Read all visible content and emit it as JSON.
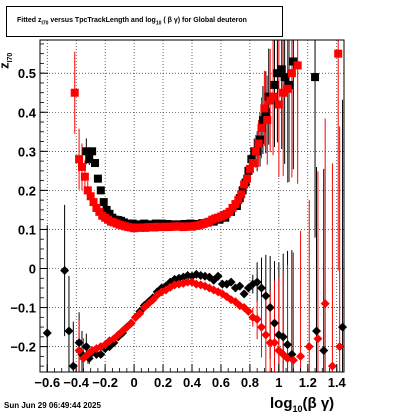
{
  "chart_data": {
    "type": "scatter",
    "title": "Fitted z_I70 versus TpcTrackLength and log_10 (β γ) for Global deuteron",
    "title_parts": {
      "pre": "Fitted  z",
      "sub1": "I70",
      "mid": "  versus TpcTrackLength and log",
      "sub2": "10",
      "post": " ( β γ) for Global deuteron"
    },
    "xlabel": "log10 (β γ)",
    "xlabel_parts": {
      "pre": "log",
      "sub": "10",
      "post": "(β γ)"
    },
    "ylabel": "z_I70",
    "ylabel_parts": {
      "pre": "z",
      "sub": "I70"
    },
    "xlim": [
      -0.65,
      1.45
    ],
    "ylim": [
      -0.265,
      0.585
    ],
    "xticks": [
      -0.6,
      -0.4,
      -0.2,
      0,
      0.2,
      0.4,
      0.6,
      0.8,
      1,
      1.2,
      1.4
    ],
    "xtick_labels": [
      "−0.6",
      "−0.4",
      "−0.2",
      "0",
      "0.2",
      "0.4",
      "0.6",
      "0.8",
      "1",
      "1.2",
      "1.4"
    ],
    "yticks": [
      -0.2,
      -0.1,
      0,
      0.1,
      0.2,
      0.3,
      0.4,
      0.5
    ],
    "ytick_labels": [
      "−0.2",
      "−0.1",
      "0",
      "0.1",
      "0.2",
      "0.3",
      "0.4",
      "0.5"
    ],
    "grid": true,
    "series": [
      {
        "color": "#000000",
        "marker": "square",
        "points": [
          [
            -0.33,
            0.3
          ],
          [
            -0.31,
            0.28
          ],
          [
            -0.29,
            0.3
          ],
          [
            -0.27,
            0.27
          ],
          [
            -0.25,
            0.23
          ],
          [
            -0.23,
            0.2
          ],
          [
            -0.21,
            0.17
          ],
          [
            -0.19,
            0.15
          ],
          [
            -0.17,
            0.14
          ],
          [
            -0.15,
            0.13
          ],
          [
            -0.13,
            0.125
          ],
          [
            -0.11,
            0.124
          ],
          [
            -0.09,
            0.122
          ],
          [
            -0.07,
            0.118
          ],
          [
            -0.04,
            0.115
          ],
          [
            -0.01,
            0.115
          ],
          [
            0.03,
            0.113
          ],
          [
            0.07,
            0.115
          ],
          [
            0.11,
            0.113
          ],
          [
            0.15,
            0.115
          ],
          [
            0.19,
            0.115
          ],
          [
            0.23,
            0.114
          ],
          [
            0.27,
            0.113
          ],
          [
            0.31,
            0.113
          ],
          [
            0.35,
            0.114
          ],
          [
            0.39,
            0.115
          ],
          [
            0.43,
            0.114
          ],
          [
            0.47,
            0.116
          ],
          [
            0.51,
            0.118
          ],
          [
            0.55,
            0.12
          ],
          [
            0.59,
            0.125
          ],
          [
            0.63,
            0.13
          ],
          [
            0.67,
            0.145
          ],
          [
            0.71,
            0.16
          ],
          [
            0.73,
            0.18
          ],
          [
            0.75,
            0.2
          ],
          [
            0.77,
            0.22
          ],
          [
            0.79,
            0.25
          ],
          [
            0.81,
            0.28
          ],
          [
            0.83,
            0.3
          ],
          [
            0.85,
            0.3
          ],
          [
            0.87,
            0.33
          ],
          [
            0.89,
            0.38
          ],
          [
            0.91,
            0.4
          ],
          [
            0.93,
            0.44
          ],
          [
            0.97,
            0.47
          ],
          [
            0.99,
            0.5
          ],
          [
            1.02,
            0.51
          ],
          [
            1.04,
            0.49
          ],
          [
            1.07,
            0.47
          ],
          [
            1.1,
            0.53
          ],
          [
            1.25,
            0.49
          ]
        ]
      },
      {
        "color": "#000000",
        "marker": "diamond",
        "points": [
          [
            -0.6,
            -0.165
          ],
          [
            -0.48,
            -0.005
          ],
          [
            -0.45,
            -0.16
          ],
          [
            -0.42,
            -0.25
          ],
          [
            -0.38,
            -0.19
          ],
          [
            -0.36,
            -0.22
          ],
          [
            -0.33,
            -0.2
          ],
          [
            -0.31,
            -0.23
          ],
          [
            -0.29,
            -0.215
          ],
          [
            -0.26,
            -0.22
          ],
          [
            -0.23,
            -0.22
          ],
          [
            -0.2,
            -0.205
          ],
          [
            -0.17,
            -0.2
          ],
          [
            -0.14,
            -0.19
          ],
          [
            -0.11,
            -0.175
          ],
          [
            -0.08,
            -0.165
          ],
          [
            -0.05,
            -0.15
          ],
          [
            -0.02,
            -0.14
          ],
          [
            0.01,
            -0.125
          ],
          [
            0.04,
            -0.11
          ],
          [
            0.07,
            -0.095
          ],
          [
            0.1,
            -0.085
          ],
          [
            0.13,
            -0.075
          ],
          [
            0.16,
            -0.06
          ],
          [
            0.19,
            -0.05
          ],
          [
            0.22,
            -0.045
          ],
          [
            0.25,
            -0.035
          ],
          [
            0.28,
            -0.028
          ],
          [
            0.31,
            -0.025
          ],
          [
            0.34,
            -0.022
          ],
          [
            0.37,
            -0.018
          ],
          [
            0.4,
            -0.02
          ],
          [
            0.43,
            -0.015
          ],
          [
            0.46,
            -0.018
          ],
          [
            0.49,
            -0.02
          ],
          [
            0.52,
            -0.022
          ],
          [
            0.55,
            -0.03
          ],
          [
            0.58,
            -0.02
          ],
          [
            0.61,
            -0.04
          ],
          [
            0.64,
            -0.04
          ],
          [
            0.67,
            -0.035
          ],
          [
            0.7,
            -0.05
          ],
          [
            0.73,
            -0.045
          ],
          [
            0.76,
            -0.065
          ],
          [
            0.79,
            -0.05
          ],
          [
            0.82,
            -0.04
          ],
          [
            0.85,
            -0.035
          ],
          [
            0.88,
            -0.05
          ],
          [
            0.91,
            -0.07
          ],
          [
            0.94,
            -0.1
          ],
          [
            0.97,
            -0.14
          ],
          [
            1.0,
            -0.17
          ],
          [
            1.03,
            -0.175
          ],
          [
            1.06,
            -0.195
          ],
          [
            1.09,
            -0.22
          ],
          [
            1.26,
            -0.16
          ],
          [
            1.31,
            -0.21
          ],
          [
            1.44,
            -0.15
          ]
        ]
      },
      {
        "color": "#ff0000",
        "marker": "square",
        "points": [
          [
            -0.41,
            0.45
          ],
          [
            -0.38,
            0.28
          ],
          [
            -0.36,
            0.26
          ],
          [
            -0.34,
            0.235
          ],
          [
            -0.32,
            0.2
          ],
          [
            -0.3,
            0.185
          ],
          [
            -0.28,
            0.17
          ],
          [
            -0.26,
            0.155
          ],
          [
            -0.24,
            0.145
          ],
          [
            -0.22,
            0.135
          ],
          [
            -0.2,
            0.13
          ],
          [
            -0.18,
            0.125
          ],
          [
            -0.16,
            0.12
          ],
          [
            -0.14,
            0.118
          ],
          [
            -0.12,
            0.115
          ],
          [
            -0.1,
            0.112
          ],
          [
            -0.08,
            0.11
          ],
          [
            -0.06,
            0.108
          ],
          [
            -0.04,
            0.106
          ],
          [
            -0.02,
            0.105
          ],
          [
            0.0,
            0.103
          ],
          [
            0.02,
            0.105
          ],
          [
            0.04,
            0.104
          ],
          [
            0.06,
            0.105
          ],
          [
            0.08,
            0.104
          ],
          [
            0.1,
            0.106
          ],
          [
            0.12,
            0.106
          ],
          [
            0.14,
            0.105
          ],
          [
            0.16,
            0.107
          ],
          [
            0.18,
            0.106
          ],
          [
            0.2,
            0.106
          ],
          [
            0.22,
            0.107
          ],
          [
            0.24,
            0.106
          ],
          [
            0.26,
            0.107
          ],
          [
            0.28,
            0.108
          ],
          [
            0.3,
            0.107
          ],
          [
            0.32,
            0.108
          ],
          [
            0.34,
            0.106
          ],
          [
            0.36,
            0.107
          ],
          [
            0.38,
            0.108
          ],
          [
            0.4,
            0.107
          ],
          [
            0.42,
            0.109
          ],
          [
            0.44,
            0.11
          ],
          [
            0.46,
            0.112
          ],
          [
            0.48,
            0.114
          ],
          [
            0.5,
            0.117
          ],
          [
            0.52,
            0.12
          ],
          [
            0.54,
            0.125
          ],
          [
            0.56,
            0.128
          ],
          [
            0.58,
            0.13
          ],
          [
            0.6,
            0.133
          ],
          [
            0.62,
            0.137
          ],
          [
            0.64,
            0.14
          ],
          [
            0.66,
            0.145
          ],
          [
            0.68,
            0.155
          ],
          [
            0.7,
            0.165
          ],
          [
            0.72,
            0.175
          ],
          [
            0.74,
            0.19
          ],
          [
            0.76,
            0.215
          ],
          [
            0.78,
            0.23
          ],
          [
            0.8,
            0.255
          ],
          [
            0.82,
            0.27
          ],
          [
            0.84,
            0.3
          ],
          [
            0.86,
            0.32
          ],
          [
            0.88,
            0.36
          ],
          [
            0.9,
            0.41
          ],
          [
            0.92,
            0.38
          ],
          [
            0.94,
            0.43
          ],
          [
            0.96,
            0.44
          ],
          [
            1.0,
            0.42
          ],
          [
            1.03,
            0.45
          ],
          [
            1.06,
            0.46
          ],
          [
            1.09,
            0.5
          ],
          [
            1.13,
            0.52
          ],
          [
            1.41,
            0.55
          ]
        ]
      },
      {
        "color": "#ff0000",
        "marker": "diamond",
        "points": [
          [
            -0.38,
            -0.21
          ],
          [
            -0.35,
            -0.23
          ],
          [
            -0.32,
            -0.22
          ],
          [
            -0.29,
            -0.21
          ],
          [
            -0.26,
            -0.205
          ],
          [
            -0.23,
            -0.2
          ],
          [
            -0.2,
            -0.195
          ],
          [
            -0.17,
            -0.185
          ],
          [
            -0.14,
            -0.18
          ],
          [
            -0.11,
            -0.17
          ],
          [
            -0.08,
            -0.16
          ],
          [
            -0.05,
            -0.15
          ],
          [
            -0.02,
            -0.14
          ],
          [
            0.01,
            -0.125
          ],
          [
            0.04,
            -0.115
          ],
          [
            0.07,
            -0.1
          ],
          [
            0.1,
            -0.09
          ],
          [
            0.13,
            -0.08
          ],
          [
            0.16,
            -0.068
          ],
          [
            0.19,
            -0.06
          ],
          [
            0.22,
            -0.055
          ],
          [
            0.25,
            -0.048
          ],
          [
            0.28,
            -0.042
          ],
          [
            0.31,
            -0.04
          ],
          [
            0.34,
            -0.038
          ],
          [
            0.37,
            -0.035
          ],
          [
            0.4,
            -0.035
          ],
          [
            0.43,
            -0.04
          ],
          [
            0.46,
            -0.042
          ],
          [
            0.49,
            -0.045
          ],
          [
            0.52,
            -0.05
          ],
          [
            0.55,
            -0.055
          ],
          [
            0.58,
            -0.06
          ],
          [
            0.61,
            -0.065
          ],
          [
            0.64,
            -0.072
          ],
          [
            0.67,
            -0.08
          ],
          [
            0.7,
            -0.085
          ],
          [
            0.73,
            -0.095
          ],
          [
            0.76,
            -0.1
          ],
          [
            0.79,
            -0.11
          ],
          [
            0.82,
            -0.125
          ],
          [
            0.85,
            -0.13
          ],
          [
            0.88,
            -0.15
          ],
          [
            0.91,
            -0.17
          ],
          [
            0.94,
            -0.19
          ],
          [
            0.97,
            -0.19
          ],
          [
            1.0,
            -0.21
          ],
          [
            1.03,
            -0.22
          ],
          [
            1.06,
            -0.23
          ],
          [
            1.1,
            -0.235
          ],
          [
            1.15,
            -0.225
          ],
          [
            1.21,
            -0.2
          ],
          [
            1.27,
            -0.18
          ],
          [
            1.32,
            -0.09
          ],
          [
            1.37,
            -0.25
          ],
          [
            1.42,
            -0.2
          ]
        ]
      }
    ]
  },
  "footer_text": "Sun Jun 29 06:49:44 2025"
}
